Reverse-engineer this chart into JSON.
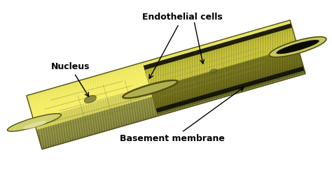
{
  "background_color": "#ffffff",
  "tube_colors": {
    "highlight": "#e8e8b0",
    "mid": "#c8c870",
    "shadow": "#8a8a30",
    "dark_edge": "#505010",
    "interior_dark": "#1a1a00",
    "inner_light": "#d0d080",
    "end_cap_dark": "#404010",
    "open_hole": "#0a0a00"
  },
  "cell_line_color": "#787840",
  "nucleus_color": "#606030",
  "labels": {
    "nucleus": "Nucleus",
    "endothelial": "Endothelial cells",
    "basement": "Basement membrane"
  },
  "label_fontsize": 9,
  "label_color": "#000000",
  "arrow_color": "#000000",
  "figsize": [
    4.74,
    2.52
  ],
  "dpi": 100,
  "xlim": [
    0,
    10
  ],
  "ylim": [
    0,
    5.3
  ]
}
